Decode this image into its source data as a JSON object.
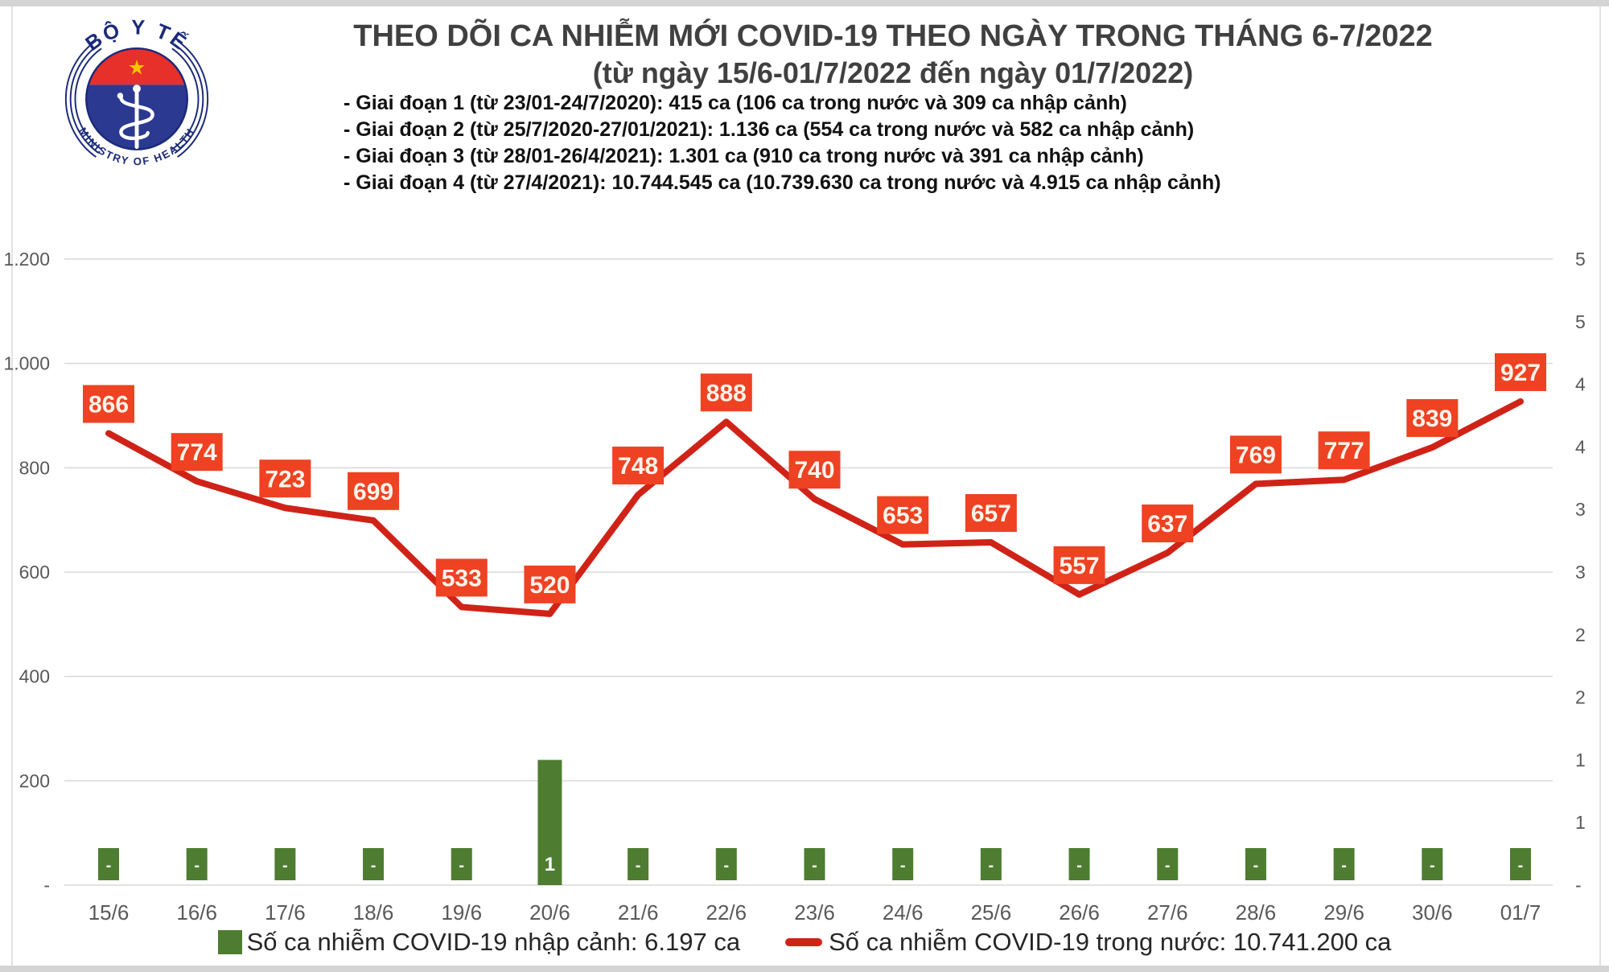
{
  "logo": {
    "top_text": "BỘ Y TẾ",
    "bottom_text": "MINISTRY OF HEALTH",
    "navy": "#1b2a78",
    "band_red": "#e63029",
    "star_yellow": "#f5c400",
    "disc_blue": "#2b3990"
  },
  "header": {
    "title": "THEO DÕI CA NHIỄM MỚI COVID-19 THEO NGÀY TRONG THÁNG 6-7/2022",
    "subtitle": "(từ ngày 15/6-01/7/2022 đến ngày 01/7/2022)",
    "phases": [
      "- Giai đoạn 1 (từ 23/01-24/7/2020): 415 ca (106 ca trong nước và 309 ca nhập cảnh)",
      "- Giai đoạn 2 (từ 25/7/2020-27/01/2021): 1.136 ca (554 ca trong nước và 582 ca nhập cảnh)",
      "- Giai đoạn 3 (từ 28/01-26/4/2021): 1.301 ca (910 ca trong nước và 391 ca nhập cảnh)",
      "- Giai đoạn 4 (từ 27/4/2021): 10.744.545 ca (10.739.630 ca trong nước và 4.915 ca nhập cảnh)"
    ]
  },
  "chart_data": {
    "type": "combo",
    "categories": [
      "15/6",
      "16/6",
      "17/6",
      "18/6",
      "19/6",
      "20/6",
      "21/6",
      "22/6",
      "23/6",
      "24/6",
      "25/6",
      "26/6",
      "27/6",
      "28/6",
      "29/6",
      "30/6",
      "01/7"
    ],
    "series": [
      {
        "name": "Số ca nhiễm COVID-19 nhập cảnh",
        "type": "bar",
        "axis": "right",
        "color": "#4e7d32",
        "values": [
          0,
          0,
          0,
          0,
          0,
          1,
          0,
          0,
          0,
          0,
          0,
          0,
          0,
          0,
          0,
          0,
          0
        ],
        "labels": [
          "-",
          "-",
          "-",
          "-",
          "-",
          "1",
          "-",
          "-",
          "-",
          "-",
          "-",
          "-",
          "-",
          "-",
          "-",
          "-",
          "-"
        ]
      },
      {
        "name": "Số ca nhiễm COVID-19 trong nước",
        "type": "line",
        "axis": "left",
        "color": "#d02318",
        "label_bg": "#ee4223",
        "label_text_color": "#fdf4ea",
        "values": [
          866,
          774,
          723,
          699,
          533,
          520,
          748,
          888,
          740,
          653,
          657,
          557,
          637,
          769,
          777,
          839,
          927
        ]
      }
    ],
    "left_axis": {
      "range": [
        0,
        1200
      ],
      "grid": true,
      "ticks": [
        {
          "value": 1200,
          "label": "1.200"
        },
        {
          "value": 1000,
          "label": "1.000"
        },
        {
          "value": 800,
          "label": "800"
        },
        {
          "value": 600,
          "label": "600"
        },
        {
          "value": 400,
          "label": "400"
        },
        {
          "value": 200,
          "label": "200"
        },
        {
          "value": 0,
          "label": "-"
        }
      ]
    },
    "right_axis": {
      "range": [
        0,
        5
      ],
      "labels": [
        "5",
        "5",
        "4",
        "4",
        "3",
        "3",
        "2",
        "2",
        "1",
        "1",
        "-"
      ]
    },
    "grid_color": "#d9d9d9",
    "axis_text_color": "#595959"
  },
  "legend": {
    "imported": {
      "label": "Số ca nhiễm COVID-19 nhập cảnh: 6.197 ca",
      "color": "#4e7d32"
    },
    "domestic": {
      "label": "Số ca nhiễm COVID-19 trong nước: 10.741.200 ca",
      "color": "#d02318"
    }
  }
}
